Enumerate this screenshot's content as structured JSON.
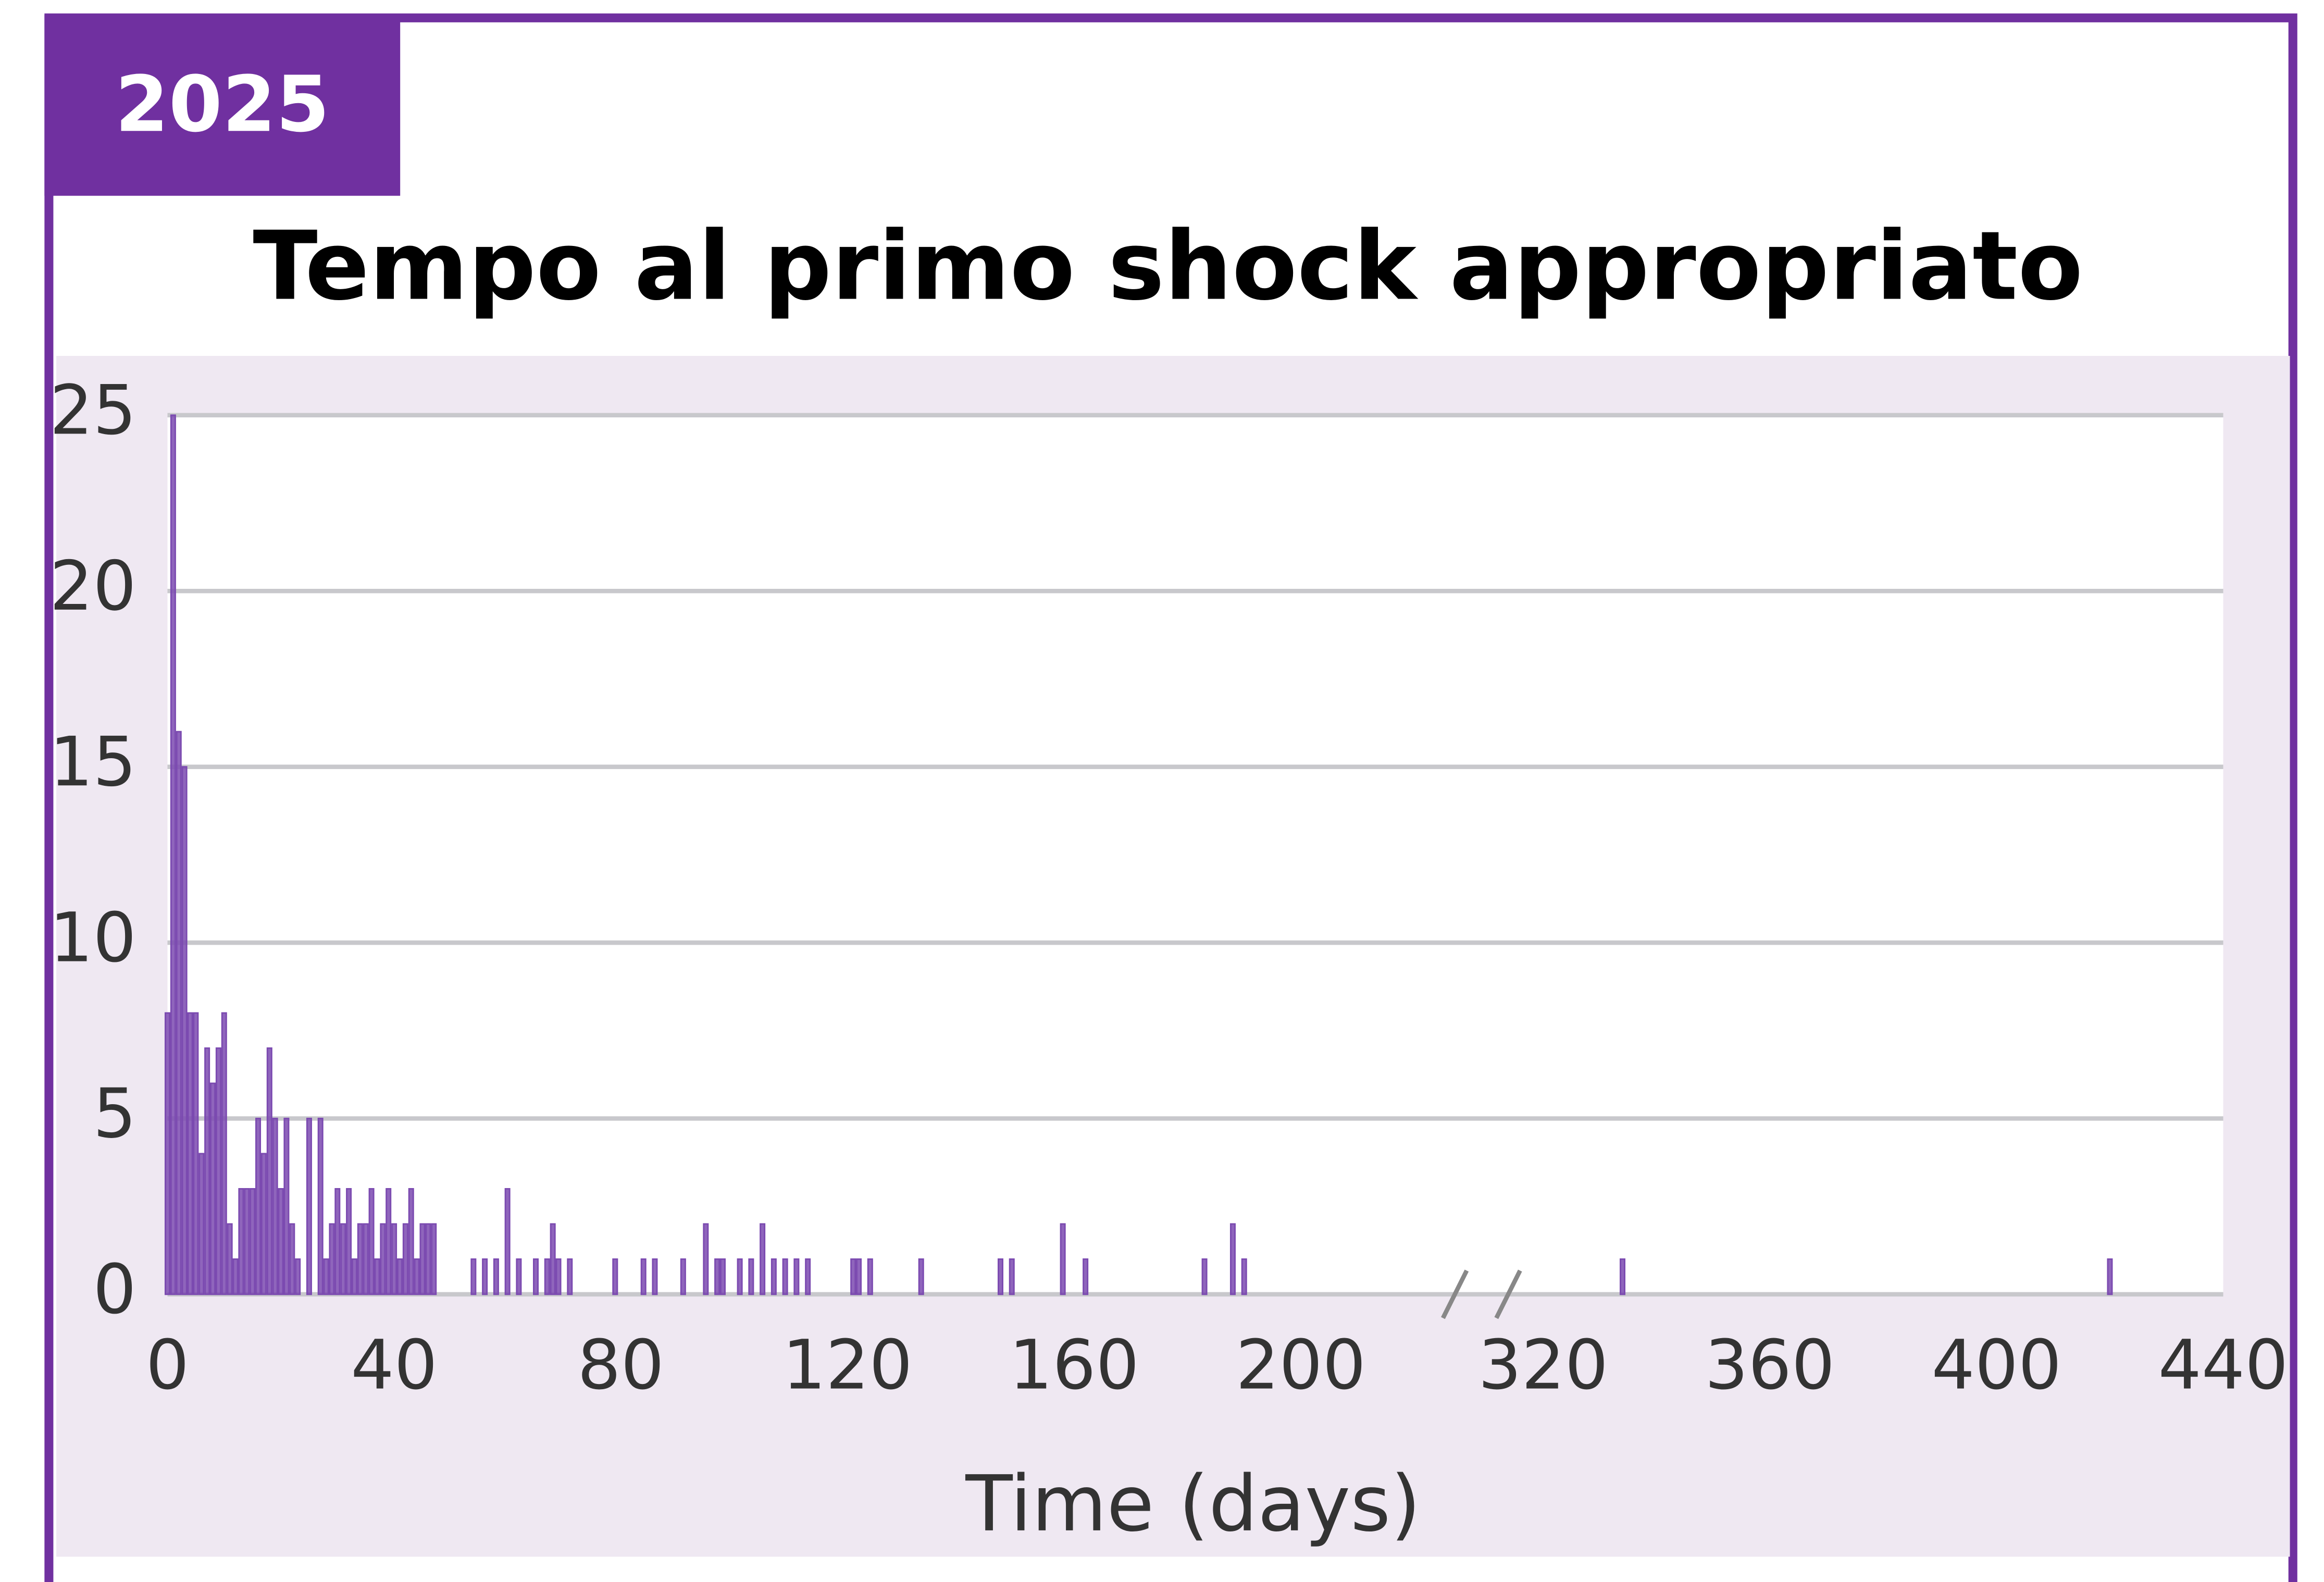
{
  "badge": "2025",
  "chart_data": {
    "type": "bar",
    "title": "Tempo al primo shock appropriato",
    "x_label": "Time (days)",
    "x": [
      0,
      1,
      2,
      3,
      4,
      5,
      6,
      7,
      8,
      9,
      10,
      11,
      12,
      13,
      14,
      15,
      16,
      17,
      18,
      19,
      20,
      21,
      22,
      23,
      25,
      27,
      28,
      29,
      30,
      31,
      32,
      33,
      34,
      35,
      36,
      37,
      38,
      39,
      40,
      41,
      42,
      43,
      44,
      45,
      46,
      47,
      54,
      56,
      58,
      60,
      62,
      65,
      67,
      68,
      69,
      71,
      79,
      84,
      86,
      91,
      95,
      97,
      98,
      101,
      103,
      105,
      107,
      109,
      111,
      113,
      121,
      122,
      124,
      133,
      147,
      149,
      158,
      162,
      183,
      188,
      190,
      334,
      420
    ],
    "values": [
      8,
      25,
      16,
      15,
      8,
      8,
      4,
      7,
      6,
      7,
      8,
      2,
      1,
      3,
      3,
      3,
      5,
      4,
      7,
      5,
      3,
      5,
      2,
      1,
      5,
      5,
      1,
      2,
      3,
      2,
      3,
      1,
      2,
      2,
      3,
      1,
      2,
      3,
      2,
      1,
      2,
      3,
      1,
      2,
      2,
      2,
      1,
      1,
      1,
      3,
      1,
      1,
      1,
      2,
      1,
      1,
      1,
      1,
      1,
      1,
      2,
      1,
      1,
      1,
      1,
      2,
      1,
      1,
      1,
      1,
      1,
      1,
      1,
      1,
      1,
      1,
      2,
      1,
      1,
      2,
      1,
      1,
      1
    ],
    "color": "#7b4ab0",
    "xlim": [
      0,
      440
    ],
    "xbreak": [
      226,
      315
    ],
    "xticks": [
      0,
      40,
      80,
      120,
      160,
      200,
      320,
      360,
      400,
      440
    ],
    "ylim": [
      0,
      25
    ],
    "yticks": [
      0,
      5,
      10,
      15,
      20,
      25
    ],
    "grid": true
  }
}
